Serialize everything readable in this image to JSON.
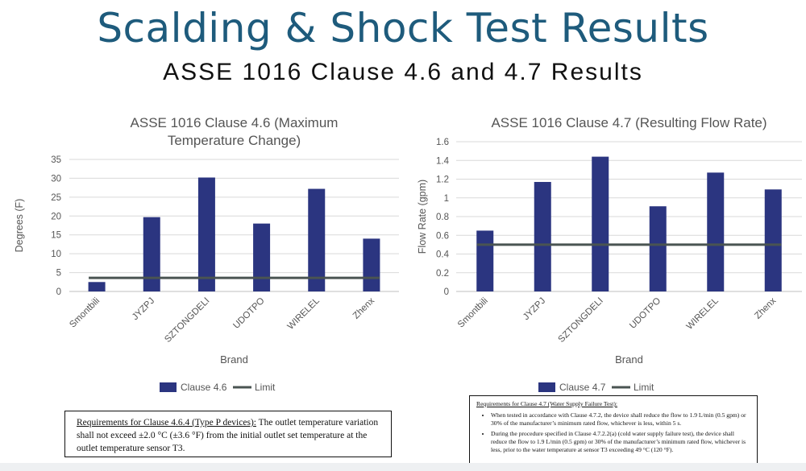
{
  "page": {
    "title": "Scalding & Shock Test Results",
    "subtitle": "ASSE 1016 Clause 4.6 and 4.7 Results"
  },
  "colors": {
    "bar": "#2b3580",
    "limit": "#4a5452",
    "title": "#1e5b7c",
    "grid": "#d9d9d9"
  },
  "chart_data": [
    {
      "type": "bar",
      "title_lines": [
        "ASSE 1016 Clause 4.6 (Maximum",
        "Temperature Change)"
      ],
      "xlabel": "Brand",
      "ylabel": "Degrees (F)",
      "ylim": [
        0,
        35
      ],
      "yticks": [
        "0",
        "5",
        "10",
        "15",
        "20",
        "25",
        "30",
        "35"
      ],
      "grid": true,
      "legend_position": "bottom",
      "categories": [
        "Smontbili",
        "JYZPJ",
        "SZTONGDELI",
        "UDOTPO",
        "WIRELEL",
        "Zhenx"
      ],
      "series": [
        {
          "name": "Clause 4.6",
          "values": [
            2.5,
            19.7,
            30.2,
            18.0,
            27.2,
            14.0
          ]
        },
        {
          "name": "Limit",
          "values": [
            3.6,
            3.6,
            3.6,
            3.6,
            3.6,
            3.6
          ]
        }
      ]
    },
    {
      "type": "bar",
      "title_lines": [
        "ASSE 1016 Clause 4.7 (Resulting Flow Rate)"
      ],
      "xlabel": "Brand",
      "ylabel": "Flow Rate (gpm)",
      "ylim": [
        0,
        1.6
      ],
      "yticks": [
        "0",
        "0.2",
        "0.4",
        "0.6",
        "0.8",
        "1",
        "1.2",
        "1.4",
        "1.6"
      ],
      "grid": true,
      "legend_position": "bottom",
      "categories": [
        "Smontbili",
        "JYZPJ",
        "SZTONGDELI",
        "UDOTPO",
        "WIRELEL",
        "Zhenx"
      ],
      "series": [
        {
          "name": "Clause 4.7",
          "values": [
            0.65,
            1.17,
            1.44,
            0.91,
            1.27,
            1.09
          ]
        },
        {
          "name": "Limit",
          "values": [
            0.5,
            0.5,
            0.5,
            0.5,
            0.5,
            0.5
          ]
        }
      ]
    }
  ],
  "requirements_left": {
    "heading": "Requirements for Clause 4.6.4 (Type P devices):",
    "text": " The outlet temperature variation shall not exceed ±2.0 °C (±3.6 °F) from the initial outlet set temperature at the outlet temperature sensor T3."
  },
  "requirements_right": {
    "heading": "Requirements for Clause 4.7 (Water Supply Failure Test):",
    "items": [
      "When tested in accordance with Clause 4.7.2, the device shall reduce the flow to 1.9 L/min (0.5 gpm) or 30% of the manufacturer’s minimum rated flow, whichever is less, within 5 s.",
      "During the procedure specified in Clause 4.7.2.2(a) (cold water supply failure test), the device shall reduce the flow to 1.9 L/min (0.5 gpm) or 30% of the manufacturer’s minimum rated flow, whichever is less, prior to the water temperature at sensor T3 exceeding 49 °C (120 °F)."
    ]
  }
}
